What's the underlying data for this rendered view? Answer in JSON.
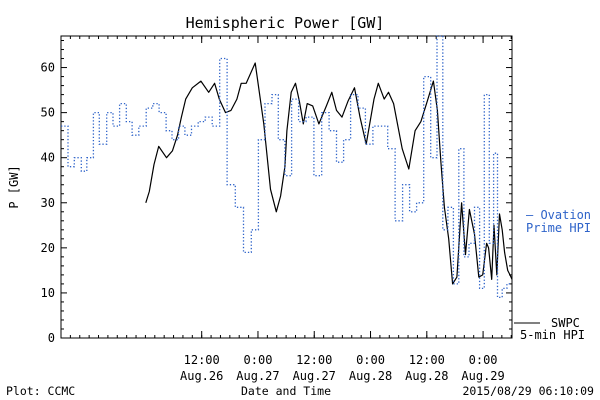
{
  "chart_data": {
    "type": "line",
    "title": "Hemispheric Power [GW]",
    "ylabel": "P [GW]",
    "xlabel": "Date and Time",
    "ylim": [
      0,
      67
    ],
    "xlim": [
      "2015-08-25T06:00",
      "2015-08-29T06:10"
    ],
    "yticks": [
      0,
      10,
      20,
      30,
      40,
      50,
      60
    ],
    "xticks": [
      {
        "time": "2015-08-26T12:00",
        "line1": "12:00",
        "line2": "Aug.26"
      },
      {
        "time": "2015-08-27T00:00",
        "line1": "0:00",
        "line2": "Aug.27"
      },
      {
        "time": "2015-08-27T12:00",
        "line1": "12:00",
        "line2": "Aug.27"
      },
      {
        "time": "2015-08-28T00:00",
        "line1": "0:00",
        "line2": "Aug.28"
      },
      {
        "time": "2015-08-28T12:00",
        "line1": "12:00",
        "line2": "Aug.28"
      },
      {
        "time": "2015-08-29T00:00",
        "line1": "0:00",
        "line2": "Aug.29"
      }
    ],
    "grid": false,
    "legend_position": "right",
    "series": [
      {
        "name": "SWPC 5-min HPI",
        "label_lines": [
          "SWPC",
          "5-min HPI"
        ],
        "color": "#000000",
        "style": "solid",
        "x": [
          "2015-08-26T00:05",
          "2015-08-26T00:50",
          "2015-08-26T01:50",
          "2015-08-26T02:50",
          "2015-08-26T04:30",
          "2015-08-26T05:45",
          "2015-08-26T06:50",
          "2015-08-26T07:40",
          "2015-08-26T08:35",
          "2015-08-26T10:00",
          "2015-08-26T11:50",
          "2015-08-26T13:30",
          "2015-08-26T14:45",
          "2015-08-26T15:45",
          "2015-08-26T17:05",
          "2015-08-26T18:15",
          "2015-08-26T19:30",
          "2015-08-26T20:25",
          "2015-08-26T21:30",
          "2015-08-26T23:25",
          "2015-08-27T01:15",
          "2015-08-27T02:40",
          "2015-08-27T03:55",
          "2015-08-27T04:50",
          "2015-08-27T05:45",
          "2015-08-27T06:10",
          "2015-08-27T07:05",
          "2015-08-27T08:00",
          "2015-08-27T08:50",
          "2015-08-27T09:40",
          "2015-08-27T10:30",
          "2015-08-27T11:40",
          "2015-08-27T13:00",
          "2015-08-27T14:35",
          "2015-08-27T15:45",
          "2015-08-27T16:45",
          "2015-08-27T17:55",
          "2015-08-27T19:10",
          "2015-08-27T20:35",
          "2015-08-27T21:45",
          "2015-08-27T23:05",
          "2015-08-28T00:45",
          "2015-08-28T01:40",
          "2015-08-28T02:55",
          "2015-08-28T03:50",
          "2015-08-28T04:55",
          "2015-08-28T06:45",
          "2015-08-28T08:10",
          "2015-08-28T09:30",
          "2015-08-28T10:45",
          "2015-08-28T12:05",
          "2015-08-28T13:25",
          "2015-08-28T14:15",
          "2015-08-28T15:00",
          "2015-08-28T15:45",
          "2015-08-28T16:40",
          "2015-08-28T17:30",
          "2015-08-28T18:25",
          "2015-08-28T19:25",
          "2015-08-28T20:15",
          "2015-08-28T21:05",
          "2015-08-28T22:10",
          "2015-08-28T23:05",
          "2015-08-28T23:55",
          "2015-08-29T00:45",
          "2015-08-29T01:10",
          "2015-08-29T01:50",
          "2015-08-29T02:20",
          "2015-08-29T02:55",
          "2015-08-29T03:30",
          "2015-08-29T04:05",
          "2015-08-29T04:35",
          "2015-08-29T05:15",
          "2015-08-29T05:45",
          "2015-08-29T06:10"
        ],
        "y": [
          30.0,
          32.5,
          38.5,
          42.5,
          40.0,
          41.5,
          45.0,
          49.0,
          53.0,
          55.5,
          57.0,
          54.5,
          56.5,
          53.0,
          50.0,
          50.5,
          53.0,
          56.5,
          56.5,
          61.0,
          47.5,
          33.0,
          28.0,
          31.5,
          38.0,
          46.0,
          54.5,
          56.5,
          52.5,
          47.5,
          52.0,
          51.5,
          47.5,
          51.5,
          54.5,
          50.5,
          49.0,
          52.5,
          55.5,
          49.0,
          43.0,
          53.0,
          56.5,
          53.0,
          54.5,
          52.0,
          42.0,
          37.5,
          46.0,
          48.0,
          52.5,
          57.0,
          50.5,
          39.0,
          29.0,
          22.0,
          12.0,
          13.5,
          30.0,
          18.5,
          28.5,
          23.0,
          13.5,
          14.0,
          21.0,
          20.0,
          13.0,
          25.0,
          14.0,
          27.5,
          24.0,
          19.0,
          15.0,
          14.0,
          13.0
        ]
      },
      {
        "name": "Ovation Prime HPI",
        "label_lines": [
          "— Ovation",
          "Prime HPI"
        ],
        "color": "#2e63c9",
        "style": "dotted-step",
        "x": [
          "2015-08-25T06:00",
          "2015-08-25T07:30",
          "2015-08-25T08:50",
          "2015-08-25T10:20",
          "2015-08-25T11:30",
          "2015-08-25T12:55",
          "2015-08-25T14:10",
          "2015-08-25T15:45",
          "2015-08-25T17:05",
          "2015-08-25T18:30",
          "2015-08-25T19:55",
          "2015-08-25T21:10",
          "2015-08-25T22:35",
          "2015-08-26T00:10",
          "2015-08-26T01:35",
          "2015-08-26T02:55",
          "2015-08-26T04:25",
          "2015-08-26T05:40",
          "2015-08-26T07:05",
          "2015-08-26T08:25",
          "2015-08-26T09:50",
          "2015-08-26T11:15",
          "2015-08-26T12:45",
          "2015-08-26T14:15",
          "2015-08-26T15:50",
          "2015-08-26T17:25",
          "2015-08-26T19:10",
          "2015-08-26T20:55",
          "2015-08-26T22:35",
          "2015-08-27T00:05",
          "2015-08-27T01:30",
          "2015-08-27T03:00",
          "2015-08-27T04:20",
          "2015-08-27T05:45",
          "2015-08-27T07:10",
          "2015-08-27T08:40",
          "2015-08-27T10:15",
          "2015-08-27T11:55",
          "2015-08-27T13:35",
          "2015-08-27T15:10",
          "2015-08-27T16:45",
          "2015-08-27T18:15",
          "2015-08-27T19:45",
          "2015-08-27T21:20",
          "2015-08-27T22:55",
          "2015-08-28T00:30",
          "2015-08-28T02:05",
          "2015-08-28T03:40",
          "2015-08-28T05:15",
          "2015-08-28T06:50",
          "2015-08-28T08:20",
          "2015-08-28T09:50",
          "2015-08-28T11:20",
          "2015-08-28T12:50",
          "2015-08-28T14:10",
          "2015-08-28T15:25",
          "2015-08-28T16:30",
          "2015-08-28T17:40",
          "2015-08-28T18:50",
          "2015-08-28T19:55",
          "2015-08-28T21:00",
          "2015-08-28T22:10",
          "2015-08-28T23:15",
          "2015-08-29T00:15",
          "2015-08-29T01:20",
          "2015-08-29T02:15",
          "2015-08-29T03:05",
          "2015-08-29T04:05",
          "2015-08-29T05:05"
        ],
        "y": [
          47,
          38,
          40,
          37,
          40,
          50,
          43,
          50,
          47,
          52,
          48,
          45,
          47,
          51,
          52,
          50,
          46,
          44,
          47,
          45,
          47,
          48,
          49,
          47,
          62,
          34,
          29,
          19,
          24,
          44,
          52,
          54,
          44,
          36,
          53,
          48,
          49,
          36,
          50,
          46,
          39,
          44,
          54,
          51,
          43,
          47,
          47,
          42,
          26,
          34,
          28,
          30,
          58,
          40,
          67,
          24,
          29,
          12,
          42,
          18,
          21,
          29,
          11,
          54,
          21,
          41,
          9,
          11,
          12
        ]
      }
    ]
  },
  "footer": {
    "left": "Plot: CCMC",
    "center": "Date and Time",
    "right": "2015/08/29 06:10:09"
  }
}
